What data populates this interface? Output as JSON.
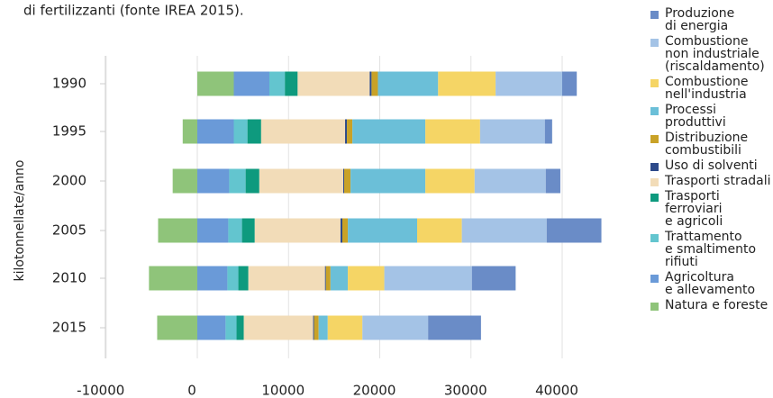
{
  "chart_data": {
    "type": "stacked-bar-horizontal",
    "subtitle": "di fertilizzanti (fonte IREA 2015).",
    "y_label": "kilotonnellate/anno",
    "categories": [
      "1990",
      "1995",
      "2000",
      "2005",
      "2010",
      "2015"
    ],
    "xlim": [
      -10000,
      45000
    ],
    "xticks": [
      -10000,
      0,
      10000,
      20000,
      30000,
      40000
    ],
    "grid": true,
    "legend": "right",
    "series": [
      {
        "name": "Natura e foreste",
        "color": "#8fc47a",
        "values": [
          4000,
          -1600,
          -2700,
          -4300,
          -5300,
          -4400
        ]
      },
      {
        "name": "Agricoltura\ne allevamento",
        "color": "#6a9ad8",
        "values": [
          3900,
          4000,
          3500,
          3400,
          3300,
          3100
        ]
      },
      {
        "name": "Trattamento\ne smaltimento\nrifiuti",
        "color": "#63c5cf",
        "values": [
          1700,
          1500,
          1800,
          1500,
          1200,
          1200
        ]
      },
      {
        "name": "Trasporti ferroviari\ne agricoli",
        "color": "#0e9a7e",
        "values": [
          1400,
          1500,
          1500,
          1400,
          1100,
          800
        ]
      },
      {
        "name": "Trasporti stradali",
        "color": "#f2dcb8",
        "values": [
          7900,
          9200,
          9200,
          9400,
          8400,
          7600
        ]
      },
      {
        "name": "Uso di solventi",
        "color": "#2d4a8a",
        "values": [
          200,
          200,
          100,
          200,
          100,
          100
        ]
      },
      {
        "name": "Distribuzione\ncombustibili",
        "color": "#c9a227",
        "values": [
          700,
          600,
          700,
          600,
          500,
          500
        ]
      },
      {
        "name": "Processi produttivi",
        "color": "#6bbfd8",
        "values": [
          6600,
          8000,
          8200,
          7600,
          1900,
          1000
        ]
      },
      {
        "name": "Combustione\nnell'industria",
        "color": "#f5d565",
        "values": [
          6300,
          6000,
          5400,
          4900,
          4000,
          3800
        ]
      },
      {
        "name": "Combustione\nnon industriale\n(riscaldamento)",
        "color": "#a4c3e6",
        "values": [
          7300,
          7100,
          7800,
          9300,
          9600,
          7200
        ]
      },
      {
        "name": "Produzione\ndi energia",
        "color": "#6a8cc7",
        "values": [
          1600,
          800,
          1600,
          6000,
          4800,
          5800
        ]
      }
    ]
  }
}
